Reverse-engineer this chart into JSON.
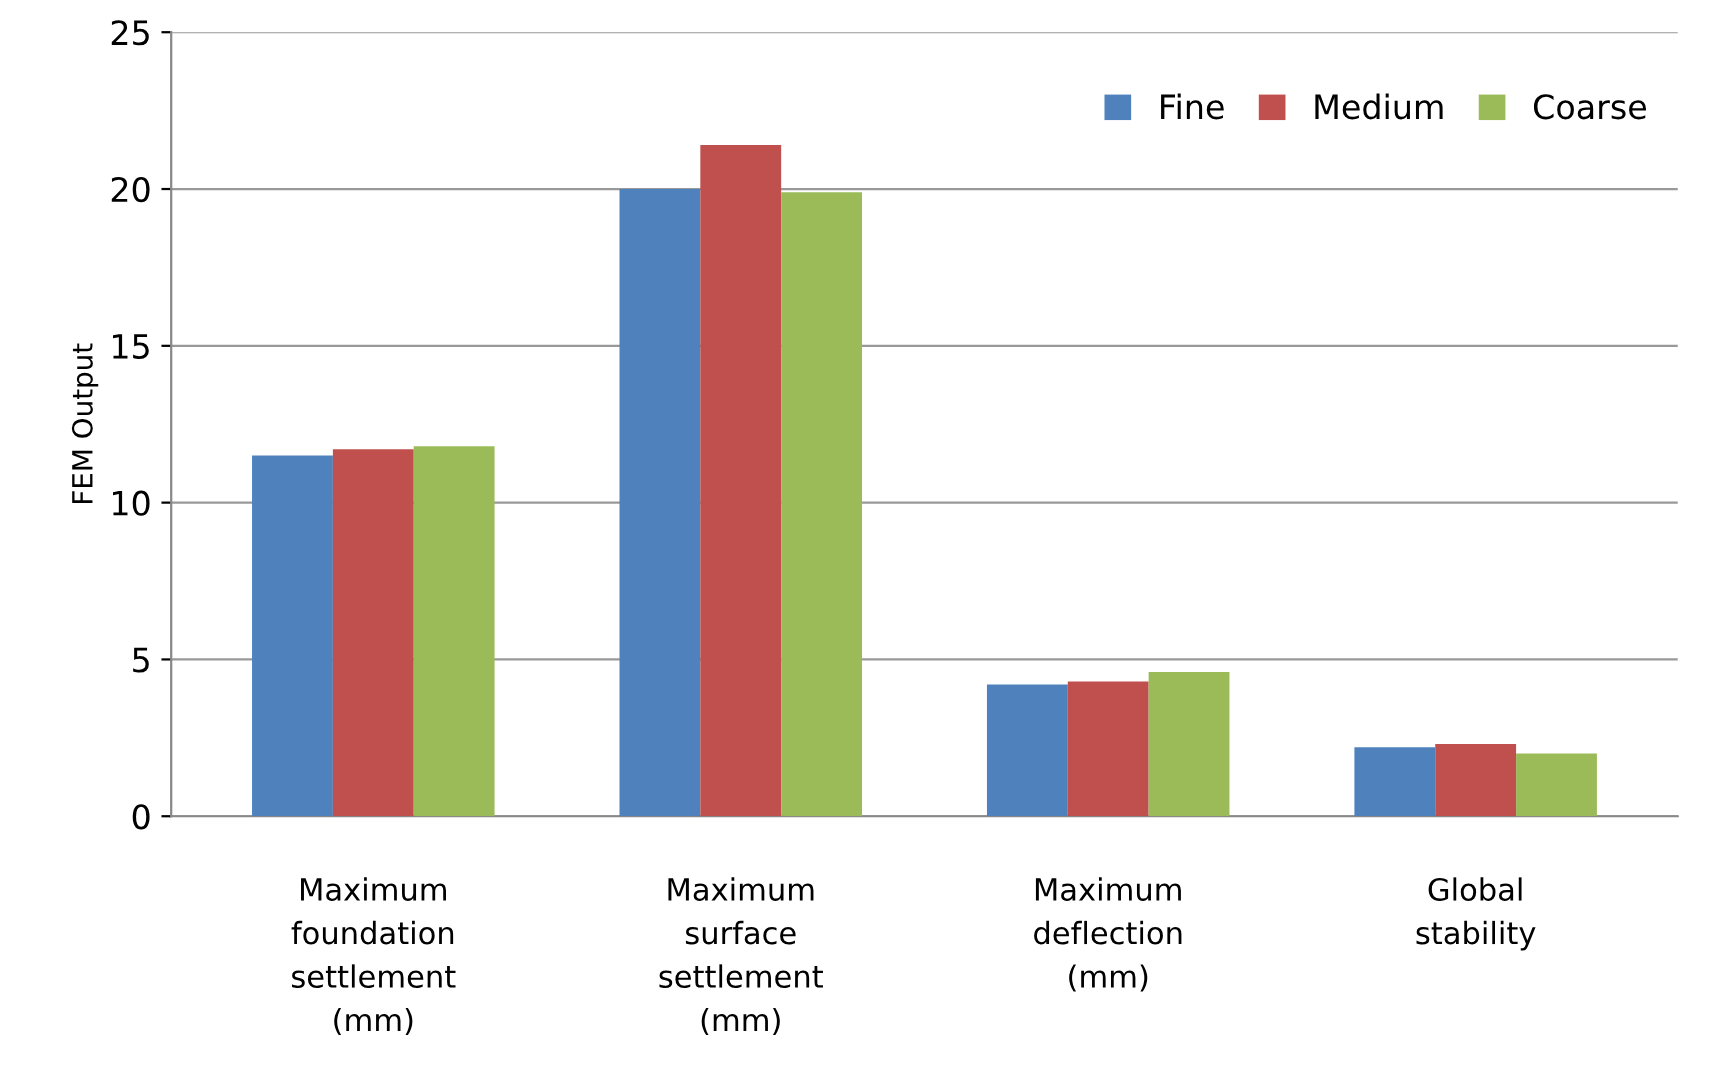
{
  "chart_data": {
    "type": "bar",
    "ylabel": "FEM Output",
    "categories": [
      "Maximum\nfoundation\nsettlement\n(mm)",
      "Maximum\nsurface\nsettlement\n(mm)",
      "Maximum\ndeflection\n(mm)",
      "Global\nstability"
    ],
    "series": [
      {
        "name": "Fine",
        "color": "#4f81bd",
        "values": [
          11.5,
          20.0,
          4.2,
          2.2
        ]
      },
      {
        "name": "Medium",
        "color": "#c0504d",
        "values": [
          11.7,
          21.4,
          4.3,
          2.3
        ]
      },
      {
        "name": "Coarse",
        "color": "#9bbb59",
        "values": [
          11.8,
          19.9,
          4.6,
          2.0
        ]
      }
    ],
    "ylim": [
      0,
      25
    ],
    "yticks": [
      0,
      5,
      10,
      15,
      20,
      25
    ],
    "grid": "y",
    "legend": "top right"
  }
}
